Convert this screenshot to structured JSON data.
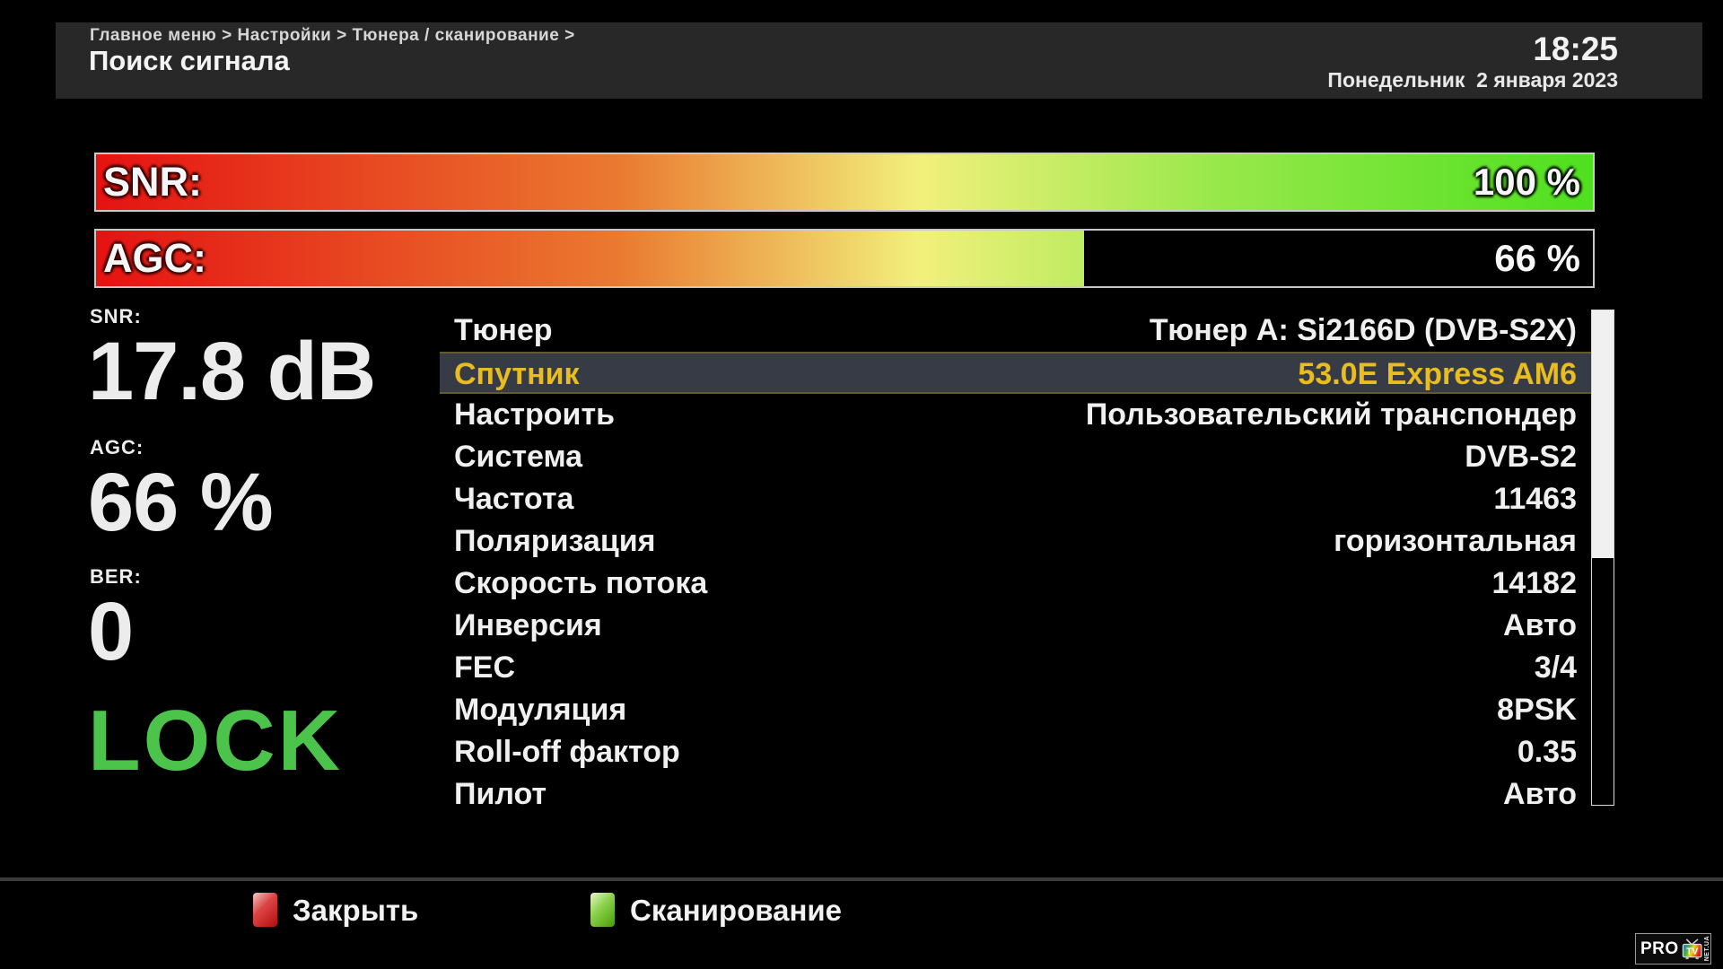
{
  "header": {
    "breadcrumb": "Главное меню > Настройки > Тюнера / сканирование >",
    "title": "Поиск сигнала",
    "time": "18:25",
    "date": "Понедельник  2 января 2023"
  },
  "signal_bars": {
    "snr": {
      "label": "SNR:",
      "value": "100 %",
      "percent": 100
    },
    "agc": {
      "label": "AGC:",
      "value": "66 %",
      "percent": 66
    }
  },
  "metrics": {
    "snr_label": "SNR:",
    "snr_value": "17.8 dB",
    "agc_label": "AGC:",
    "agc_value": "66 %",
    "ber_label": "BER:",
    "ber_value": "0",
    "lock": "LOCK"
  },
  "menu": {
    "rows": [
      {
        "label": "Тюнер",
        "value": "Тюнер А: Si2166D (DVB-S2X)",
        "selected": false
      },
      {
        "label": "Спутник",
        "value": "53.0E Express AM6",
        "selected": true
      },
      {
        "label": "Настроить",
        "value": "Пользовательский транспондер",
        "selected": false
      },
      {
        "label": "Система",
        "value": "DVB-S2",
        "selected": false
      },
      {
        "label": "Частота",
        "value": "11463",
        "selected": false
      },
      {
        "label": "Поляризация",
        "value": "горизонтальная",
        "selected": false
      },
      {
        "label": "Скорость потока",
        "value": "14182",
        "selected": false
      },
      {
        "label": "Инверсия",
        "value": "Авто",
        "selected": false
      },
      {
        "label": "FEC",
        "value": "3/4",
        "selected": false
      },
      {
        "label": "Модуляция",
        "value": "8PSK",
        "selected": false
      },
      {
        "label": "Roll-off фактор",
        "value": "0.35",
        "selected": false
      },
      {
        "label": "Пилот",
        "value": "Авто",
        "selected": false
      }
    ]
  },
  "footer": {
    "close_label": "Закрыть",
    "scan_label": "Сканирование"
  },
  "logo": {
    "pro": "PRO",
    "tv": "TV",
    "suffix": "NET.UA"
  },
  "colors": {
    "selected_text": "#e9bd1d",
    "selected_bg": "#373b46",
    "lock_green": "#4cc44c",
    "gradient_red": "#e51212",
    "gradient_green": "#4ee01e",
    "red_key": "#b40c0c",
    "green_key": "#459e07"
  }
}
